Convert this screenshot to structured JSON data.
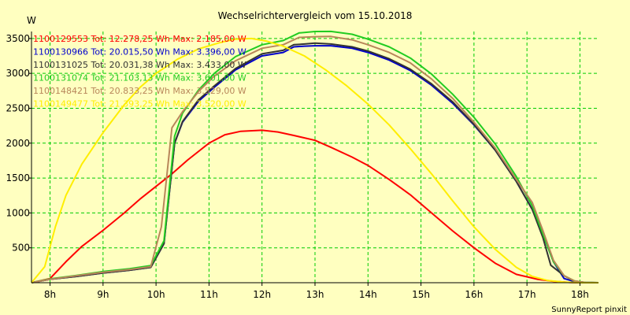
{
  "chart_data": {
    "type": "line",
    "title": "Wechselrichtervergleich vom 15.10.2018",
    "ylabel": "W",
    "xlabel": "",
    "footer": "SunnyReport pinxit",
    "xlim": [
      7.65,
      18.35
    ],
    "ylim": [
      0,
      3600
    ],
    "grid": true,
    "legend_position": "top-left",
    "x_ticks": [
      {
        "value": 8,
        "label": "8h"
      },
      {
        "value": 9,
        "label": "9h"
      },
      {
        "value": 10,
        "label": "10h"
      },
      {
        "value": 11,
        "label": "11h"
      },
      {
        "value": 12,
        "label": "12h"
      },
      {
        "value": 13,
        "label": "13h"
      },
      {
        "value": 14,
        "label": "14h"
      },
      {
        "value": 15,
        "label": "15h"
      },
      {
        "value": 16,
        "label": "16h"
      },
      {
        "value": 17,
        "label": "17h"
      },
      {
        "value": 18,
        "label": "18h"
      }
    ],
    "y_ticks": [
      {
        "value": 500,
        "label": "500"
      },
      {
        "value": 1000,
        "label": "1000"
      },
      {
        "value": 1500,
        "label": "1500"
      },
      {
        "value": 2000,
        "label": "2000"
      },
      {
        "value": 2500,
        "label": "2500"
      },
      {
        "value": 3000,
        "label": "3000"
      },
      {
        "value": 3500,
        "label": "3500"
      }
    ],
    "series": [
      {
        "name": "1100129553",
        "legend": "1100129553 Tot: 12.278,25 Wh Max: 2.185,00 W",
        "color": "#ff0000",
        "x": [
          7.65,
          8.0,
          8.3,
          8.6,
          9.0,
          9.4,
          9.7,
          10.0,
          10.3,
          10.6,
          11.0,
          11.3,
          11.6,
          12.0,
          12.3,
          12.6,
          13.0,
          13.3,
          13.7,
          14.0,
          14.4,
          14.8,
          15.2,
          15.6,
          16.0,
          16.4,
          16.8,
          17.2,
          17.5,
          17.8,
          18.0,
          18.2,
          18.35
        ],
        "y": [
          0,
          60,
          300,
          520,
          750,
          1000,
          1200,
          1380,
          1560,
          1760,
          2000,
          2120,
          2170,
          2185,
          2160,
          2110,
          2040,
          1940,
          1800,
          1680,
          1480,
          1260,
          1000,
          740,
          500,
          280,
          120,
          50,
          20,
          5,
          0,
          0,
          0
        ]
      },
      {
        "name": "1100130966",
        "legend": "1100130966 Tot: 20.015,50 Wh Max: 3.396,00 W",
        "color": "#0000cc",
        "x": [
          7.65,
          8.0,
          8.5,
          9.0,
          9.5,
          9.9,
          10.15,
          10.35,
          10.5,
          10.8,
          11.1,
          11.5,
          12.0,
          12.4,
          12.6,
          12.8,
          13.0,
          13.3,
          13.7,
          14.0,
          14.4,
          14.8,
          15.2,
          15.6,
          16.0,
          16.4,
          16.8,
          17.1,
          17.3,
          17.5,
          17.7,
          17.9,
          18.1,
          18.35
        ],
        "y": [
          0,
          50,
          90,
          140,
          180,
          220,
          560,
          2000,
          2300,
          2600,
          2800,
          3050,
          3250,
          3300,
          3380,
          3390,
          3396,
          3396,
          3360,
          3300,
          3190,
          3040,
          2830,
          2570,
          2260,
          1900,
          1450,
          1050,
          700,
          300,
          60,
          15,
          3,
          0
        ]
      },
      {
        "name": "1100131025",
        "legend": "1100131025 Tot: 20.031,38 Wh Max: 3.433,00 W",
        "color": "#333333",
        "x": [
          7.65,
          8.0,
          8.5,
          9.0,
          9.5,
          9.9,
          10.15,
          10.35,
          10.5,
          10.8,
          11.1,
          11.5,
          12.0,
          12.4,
          12.6,
          12.8,
          13.0,
          13.3,
          13.7,
          14.0,
          14.4,
          14.8,
          15.2,
          15.6,
          16.0,
          16.4,
          16.8,
          17.1,
          17.3,
          17.45,
          17.7,
          17.9,
          18.1,
          18.35
        ],
        "y": [
          0,
          50,
          90,
          140,
          180,
          220,
          560,
          2000,
          2310,
          2620,
          2820,
          3070,
          3280,
          3330,
          3410,
          3420,
          3433,
          3420,
          3380,
          3320,
          3210,
          3060,
          2850,
          2590,
          2270,
          1900,
          1450,
          1050,
          650,
          250,
          100,
          20,
          3,
          0
        ]
      },
      {
        "name": "1100131074",
        "legend": "1100131074 Tot: 21.103,13 Wh Max: 3.601,00 W",
        "color": "#22cc22",
        "x": [
          7.65,
          8.0,
          8.5,
          9.0,
          9.5,
          9.9,
          10.15,
          10.35,
          10.5,
          10.8,
          11.1,
          11.5,
          12.0,
          12.4,
          12.7,
          13.0,
          13.3,
          13.7,
          14.0,
          14.4,
          14.8,
          15.2,
          15.6,
          16.0,
          16.4,
          16.8,
          17.1,
          17.3,
          17.5,
          17.7,
          17.9,
          18.1,
          18.35
        ],
        "y": [
          0,
          55,
          105,
          160,
          200,
          245,
          600,
          2100,
          2430,
          2760,
          3000,
          3240,
          3410,
          3470,
          3580,
          3600,
          3601,
          3560,
          3490,
          3380,
          3220,
          2990,
          2700,
          2370,
          1990,
          1520,
          1100,
          700,
          300,
          100,
          25,
          3,
          0
        ]
      },
      {
        "name": "1100148421",
        "legend": "1100148421 Tot: 20.833,25 Wh Max: 3.529,00 W",
        "color": "#b8865a",
        "x": [
          7.65,
          8.0,
          8.5,
          9.0,
          9.5,
          9.9,
          10.1,
          10.3,
          10.5,
          10.8,
          11.1,
          11.5,
          12.0,
          12.4,
          12.7,
          13.0,
          13.3,
          13.7,
          14.0,
          14.4,
          14.8,
          15.2,
          15.6,
          16.0,
          16.4,
          16.8,
          17.1,
          17.3,
          17.5,
          17.7,
          17.9,
          18.1,
          18.35
        ],
        "y": [
          0,
          50,
          100,
          150,
          190,
          230,
          800,
          2220,
          2450,
          2740,
          2960,
          3180,
          3360,
          3410,
          3515,
          3525,
          3529,
          3480,
          3410,
          3300,
          3150,
          2920,
          2640,
          2300,
          1930,
          1480,
          1150,
          750,
          320,
          100,
          25,
          3,
          0
        ]
      },
      {
        "name": "1100149477",
        "legend": "1100149477 Tot: 21.393,25 Wh Max: 3.520,00 W",
        "color": "#ffee00",
        "x": [
          7.65,
          7.9,
          8.1,
          8.3,
          8.6,
          9.0,
          9.4,
          9.7,
          10.0,
          10.4,
          10.8,
          11.2,
          11.5,
          11.8,
          12.1,
          12.4,
          12.8,
          13.2,
          13.6,
          14.0,
          14.4,
          14.8,
          15.2,
          15.6,
          16.0,
          16.4,
          16.8,
          17.1,
          17.4,
          17.7,
          18.0,
          18.2,
          18.35
        ],
        "y": [
          0,
          230,
          800,
          1250,
          1700,
          2150,
          2550,
          2800,
          3000,
          3200,
          3350,
          3440,
          3490,
          3500,
          3460,
          3390,
          3250,
          3050,
          2820,
          2560,
          2260,
          1920,
          1560,
          1170,
          800,
          480,
          220,
          90,
          30,
          8,
          0,
          0,
          0
        ]
      }
    ]
  }
}
